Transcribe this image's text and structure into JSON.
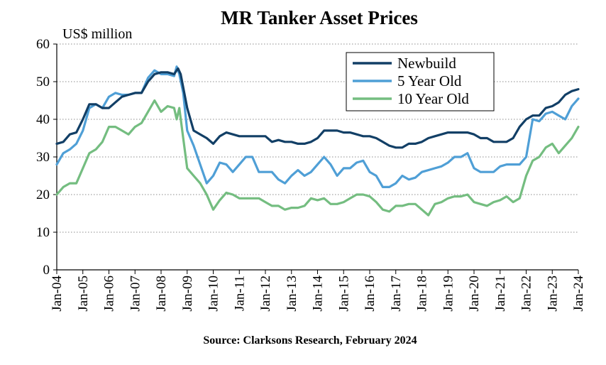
{
  "chart_data": {
    "type": "line",
    "title": "MR Tanker Asset Prices",
    "ylabel": "US$ million",
    "xlabel": "",
    "source": "Source: Clarksons Research, February 2024",
    "ylim": [
      0,
      60
    ],
    "yticks": [
      0,
      10,
      20,
      30,
      40,
      50,
      60
    ],
    "xlim": [
      2004,
      2024
    ],
    "xticks": [
      2004,
      2005,
      2006,
      2007,
      2008,
      2009,
      2010,
      2011,
      2012,
      2013,
      2014,
      2015,
      2016,
      2017,
      2018,
      2019,
      2020,
      2021,
      2022,
      2023,
      2024
    ],
    "xtick_labels": [
      "Jan-04",
      "Jan-05",
      "Jan-06",
      "Jan-07",
      "Jan-08",
      "Jan-09",
      "Jan-10",
      "Jan-11",
      "Jan-12",
      "Jan-13",
      "Jan-14",
      "Jan-15",
      "Jan-16",
      "Jan-17",
      "Jan-18",
      "Jan-19",
      "Jan-20",
      "Jan-21",
      "Jan-22",
      "Jan-23",
      "Jan-24"
    ],
    "grid": true,
    "legend_position": "top-right",
    "series": [
      {
        "name": "Newbuild",
        "color": "#123f66",
        "x": [
          2004,
          2004.25,
          2004.5,
          2004.75,
          2005,
          2005.25,
          2005.5,
          2005.75,
          2006,
          2006.25,
          2006.5,
          2006.75,
          2007,
          2007.25,
          2007.5,
          2007.75,
          2008,
          2008.25,
          2008.5,
          2008.65,
          2008.75,
          2009,
          2009.25,
          2009.5,
          2009.75,
          2010,
          2010.25,
          2010.5,
          2010.75,
          2011,
          2011.25,
          2011.5,
          2011.75,
          2012,
          2012.25,
          2012.5,
          2012.75,
          2013,
          2013.25,
          2013.5,
          2013.75,
          2014,
          2014.25,
          2014.5,
          2014.75,
          2015,
          2015.25,
          2015.5,
          2015.75,
          2016,
          2016.25,
          2016.5,
          2016.75,
          2017,
          2017.25,
          2017.5,
          2017.75,
          2018,
          2018.25,
          2018.5,
          2018.75,
          2019,
          2019.25,
          2019.5,
          2019.75,
          2020,
          2020.25,
          2020.5,
          2020.75,
          2021,
          2021.25,
          2021.5,
          2021.75,
          2022,
          2022.25,
          2022.5,
          2022.75,
          2023,
          2023.25,
          2023.5,
          2023.75,
          2024
        ],
        "values": [
          33.5,
          34,
          36,
          36.5,
          40,
          44,
          44,
          43,
          43,
          44.5,
          46,
          46.5,
          47,
          47,
          50,
          52,
          52.5,
          52.5,
          52,
          53.5,
          52,
          43,
          37,
          36,
          35,
          33.5,
          35.5,
          36.5,
          36,
          35.5,
          35.5,
          35.5,
          35.5,
          35.5,
          34,
          34.5,
          34,
          34,
          33.5,
          33.5,
          34,
          35,
          37,
          37,
          37,
          36.5,
          36.5,
          36,
          35.5,
          35.5,
          35,
          34,
          33,
          32.5,
          32.5,
          33.5,
          33.5,
          34,
          35,
          35.5,
          36,
          36.5,
          36.5,
          36.5,
          36.5,
          36,
          35,
          35,
          34,
          34,
          34,
          35,
          38,
          40,
          41,
          41,
          43,
          43.5,
          44.5,
          46.5,
          47.5,
          48
        ]
      },
      {
        "name": "5 Year Old",
        "color": "#4f9fd6",
        "x": [
          2004,
          2004.25,
          2004.5,
          2004.75,
          2005,
          2005.25,
          2005.5,
          2005.75,
          2006,
          2006.25,
          2006.5,
          2006.75,
          2007,
          2007.25,
          2007.5,
          2007.75,
          2008,
          2008.25,
          2008.5,
          2008.6,
          2008.7,
          2008.85,
          2009,
          2009.25,
          2009.5,
          2009.75,
          2010,
          2010.25,
          2010.5,
          2010.75,
          2011,
          2011.25,
          2011.5,
          2011.75,
          2012,
          2012.25,
          2012.5,
          2012.75,
          2013,
          2013.25,
          2013.5,
          2013.75,
          2014,
          2014.25,
          2014.5,
          2014.75,
          2015,
          2015.25,
          2015.5,
          2015.75,
          2016,
          2016.25,
          2016.5,
          2016.75,
          2017,
          2017.25,
          2017.5,
          2017.75,
          2018,
          2018.25,
          2018.5,
          2018.75,
          2019,
          2019.25,
          2019.5,
          2019.75,
          2020,
          2020.25,
          2020.5,
          2020.75,
          2021,
          2021.25,
          2021.5,
          2021.75,
          2022,
          2022.25,
          2022.5,
          2022.75,
          2023,
          2023.25,
          2023.5,
          2023.75,
          2024
        ],
        "values": [
          28,
          31,
          32,
          33.5,
          37,
          43,
          44,
          43,
          46,
          47,
          46.5,
          46.5,
          47,
          47,
          51,
          53,
          52,
          52,
          51.5,
          54,
          52,
          47,
          37,
          33,
          28,
          23,
          25,
          28.5,
          28,
          26,
          28,
          30,
          30,
          26,
          26,
          26,
          24,
          23,
          25,
          26.5,
          25,
          26,
          28,
          30,
          28,
          25,
          27,
          27,
          28.5,
          29,
          26,
          25,
          22,
          22,
          23,
          25,
          24,
          24.5,
          26,
          26.5,
          27,
          27.5,
          28.5,
          30,
          30,
          31,
          27,
          26,
          26,
          26,
          27.5,
          28,
          28,
          28,
          30,
          40,
          39.5,
          41.5,
          42,
          41,
          40,
          43.5,
          45.5
        ]
      },
      {
        "name": "10 Year Old",
        "color": "#74bd80",
        "x": [
          2004,
          2004.25,
          2004.5,
          2004.75,
          2005,
          2005.25,
          2005.5,
          2005.75,
          2006,
          2006.25,
          2006.5,
          2006.75,
          2007,
          2007.25,
          2007.5,
          2007.75,
          2008,
          2008.25,
          2008.5,
          2008.6,
          2008.7,
          2008.85,
          2009,
          2009.25,
          2009.5,
          2009.75,
          2010,
          2010.25,
          2010.5,
          2010.75,
          2011,
          2011.25,
          2011.5,
          2011.75,
          2012,
          2012.25,
          2012.5,
          2012.75,
          2013,
          2013.25,
          2013.5,
          2013.75,
          2014,
          2014.25,
          2014.5,
          2014.75,
          2015,
          2015.25,
          2015.5,
          2015.75,
          2016,
          2016.25,
          2016.5,
          2016.75,
          2017,
          2017.25,
          2017.5,
          2017.75,
          2018,
          2018.25,
          2018.5,
          2018.75,
          2019,
          2019.25,
          2019.5,
          2019.75,
          2020,
          2020.25,
          2020.5,
          2020.75,
          2021,
          2021.25,
          2021.5,
          2021.75,
          2022,
          2022.25,
          2022.5,
          2022.75,
          2023,
          2023.25,
          2023.5,
          2023.75,
          2024
        ],
        "values": [
          20,
          22,
          23,
          23,
          27,
          31,
          32,
          34,
          38,
          38,
          37,
          36,
          38,
          39,
          42,
          45,
          42,
          43.5,
          43,
          40,
          43,
          35,
          27,
          25,
          23,
          20,
          16,
          18.5,
          20.5,
          20,
          19,
          19,
          19,
          19,
          18,
          17,
          17,
          16,
          16.5,
          16.5,
          17,
          19,
          18.5,
          19,
          17.5,
          17.5,
          18,
          19,
          20,
          20,
          19.5,
          18,
          16,
          15.5,
          17,
          17,
          17.5,
          17.5,
          16,
          14.5,
          17.5,
          18,
          19,
          19.5,
          19.5,
          20,
          18,
          17.5,
          17,
          18,
          18.5,
          19.5,
          18,
          19,
          25,
          29,
          30,
          32.5,
          33.5,
          31,
          33,
          35,
          38
        ]
      }
    ]
  }
}
